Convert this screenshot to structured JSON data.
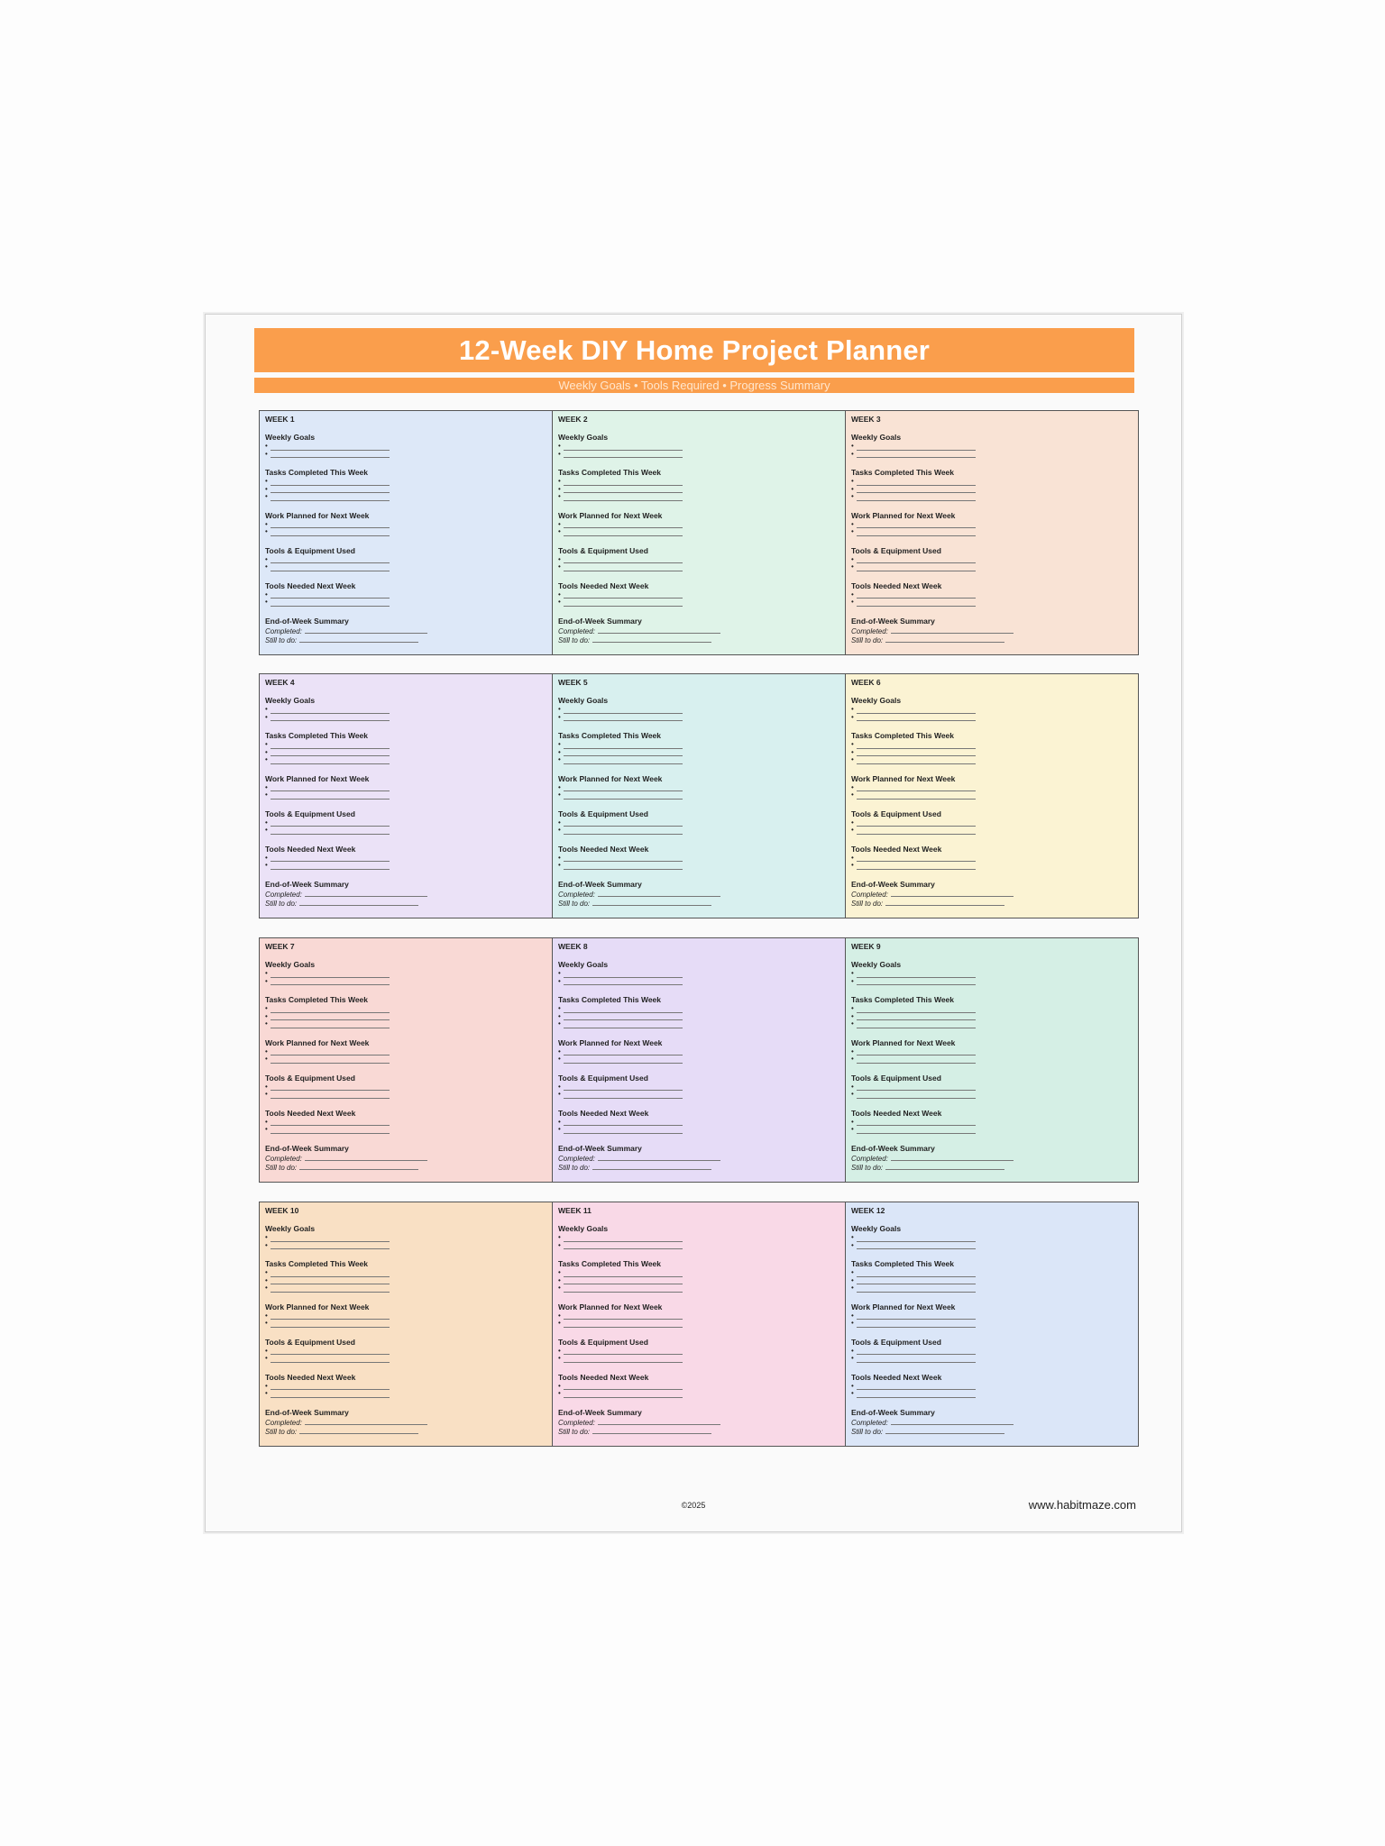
{
  "title": "12-Week DIY Home Project Planner",
  "subtitle": "Weekly Goals • Tools Required • Progress Summary",
  "sections": [
    {
      "label": "Weekly Goals",
      "lines": 2
    },
    {
      "label": "Tasks Completed This Week",
      "lines": 3
    },
    {
      "label": "Work Planned for Next Week",
      "lines": 2
    },
    {
      "label": "Tools & Equipment Used",
      "lines": 2
    },
    {
      "label": "Tools Needed Next Week",
      "lines": 2
    }
  ],
  "summary": {
    "label": "End-of-Week Summary",
    "completed": "Completed:",
    "still": "Still to do:"
  },
  "weeks": [
    {
      "label": "WEEK 1",
      "color": "#dde8f8"
    },
    {
      "label": "WEEK 2",
      "color": "#dff3e8"
    },
    {
      "label": "WEEK 3",
      "color": "#f9e3d5"
    },
    {
      "label": "WEEK 4",
      "color": "#ebe2f7"
    },
    {
      "label": "WEEK 5",
      "color": "#d8f0ef"
    },
    {
      "label": "WEEK 6",
      "color": "#fbf3d3"
    },
    {
      "label": "WEEK 7",
      "color": "#f9d9d5"
    },
    {
      "label": "WEEK 8",
      "color": "#e6dcf7"
    },
    {
      "label": "WEEK 9",
      "color": "#d5efe5"
    },
    {
      "label": "WEEK 10",
      "color": "#f9e0c4"
    },
    {
      "label": "WEEK 11",
      "color": "#f9d9e7"
    },
    {
      "label": "WEEK 12",
      "color": "#dbe6f8"
    }
  ],
  "footer": {
    "copyright": "©2025",
    "site": "www.habitmaze.com"
  }
}
